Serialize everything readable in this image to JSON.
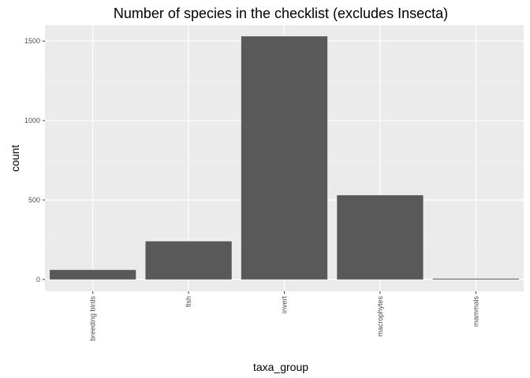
{
  "chart_data": {
    "type": "bar",
    "title": "Number of species in the checklist (excludes Insecta)",
    "xlabel": "taxa_group",
    "ylabel": "count",
    "categories": [
      "breeding birds",
      "fish",
      "invert",
      "macrophytes",
      "mammals"
    ],
    "values": [
      60,
      240,
      1530,
      530,
      5
    ],
    "ylim": [
      -75,
      1600
    ],
    "yticks": [
      0,
      500,
      1000,
      1500
    ],
    "grid": true,
    "legend": "none",
    "colors": {
      "panel_background": "#EBEBEB",
      "grid_major": "#FFFFFF",
      "grid_minor": "#F5F5F5",
      "bar_fill": "#595959",
      "tick_color": "#333333"
    }
  }
}
